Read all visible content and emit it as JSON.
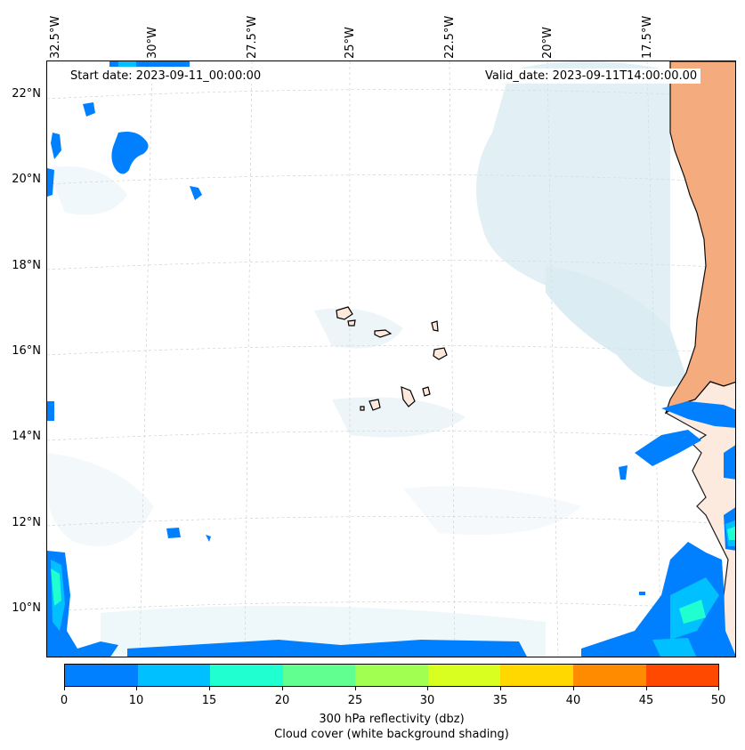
{
  "map": {
    "start_date": "Start date: 2023-09-11_00:00:00",
    "valid_date": "Valid_date: 2023-09-11T14:00:00.00",
    "lon_labels": [
      "32.5°W",
      "30°W",
      "27.5°W",
      "25°W",
      "22.5°W",
      "20°W",
      "17.5°W"
    ],
    "lat_labels": [
      "22°N",
      "20°N",
      "18°N",
      "16°N",
      "14°N",
      "12°N",
      "10°N"
    ]
  },
  "colorbar": {
    "ticks": [
      "0",
      "10",
      "15",
      "20",
      "25",
      "30",
      "35",
      "40",
      "45",
      "50"
    ],
    "colors": [
      "#0080ff",
      "#00c0ff",
      "#20ffd0",
      "#60ff90",
      "#a0ff50",
      "#d8ff20",
      "#ffd800",
      "#ff8c00",
      "#ff4800"
    ],
    "label": "300 hPa reflectivity (dbz)",
    "sublabel": "Cloud cover (white background shading)"
  },
  "colors": {
    "reflectivity_low": "#0080ff",
    "reflectivity_mid": "#00c0ff",
    "reflectivity_high": "#20ffd0",
    "cloud": "#cfe6ef",
    "land": "#f4a878"
  }
}
